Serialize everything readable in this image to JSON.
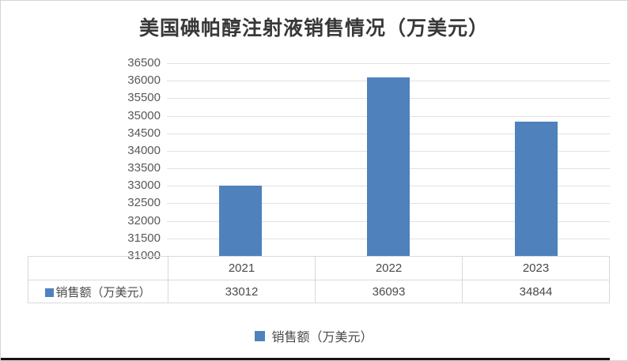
{
  "chart_data": {
    "type": "bar",
    "title": "美国碘帕醇注射液销售情况（万美元）",
    "categories": [
      "2021",
      "2022",
      "2023"
    ],
    "series": [
      {
        "name": "销售额（万美元）",
        "values": [
          33012,
          36093,
          34844
        ]
      }
    ],
    "ylim": [
      31000,
      36500
    ],
    "ytick_step": 500,
    "yticks": [
      36500,
      36000,
      35500,
      35000,
      34500,
      34000,
      33500,
      33000,
      32500,
      32000,
      31500,
      31000
    ],
    "xlabel": "",
    "ylabel": "",
    "grid": "horizontal",
    "legend_position": "bottom",
    "data_table_shown": true,
    "bar_color": "#4f81bd",
    "gridline_color": "#e2e2e2",
    "table_border_color": "#d9d9d9"
  }
}
